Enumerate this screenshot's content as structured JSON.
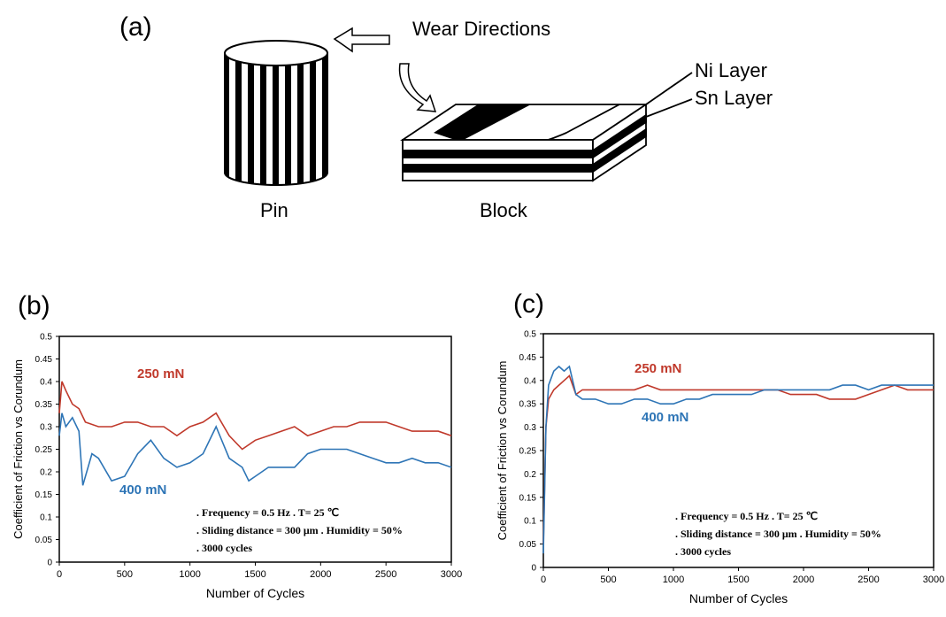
{
  "panel_a": {
    "label": "(a)",
    "wear_directions": "Wear Directions",
    "ni_layer": "Ni Layer",
    "sn_layer": "Sn Layer",
    "pin": "Pin",
    "block": "Block"
  },
  "chart_data": [
    {
      "type": "line",
      "panel": "(b)",
      "xlabel": "Number of Cycles",
      "ylabel": "Coefficient of Friction vs Corundum",
      "xlim": [
        0,
        3000
      ],
      "ylim": [
        0,
        0.5
      ],
      "xticks": [
        "0",
        "500",
        "1000",
        "1500",
        "2000",
        "2500",
        "3000"
      ],
      "yticks": [
        "0",
        "0.05",
        "0.1",
        "0.15",
        "0.2",
        "0.25",
        "0.3",
        "0.35",
        "0.4",
        "0.45",
        "0.5"
      ],
      "series": [
        {
          "name": "250 mN",
          "color": "#c0392b",
          "x": [
            0,
            20,
            50,
            100,
            150,
            200,
            300,
            400,
            500,
            600,
            700,
            800,
            900,
            1000,
            1100,
            1200,
            1300,
            1400,
            1500,
            1600,
            1700,
            1800,
            1900,
            2000,
            2100,
            2200,
            2300,
            2400,
            2500,
            2600,
            2700,
            2800,
            2900,
            3000
          ],
          "y": [
            0.33,
            0.4,
            0.38,
            0.35,
            0.34,
            0.31,
            0.3,
            0.3,
            0.31,
            0.31,
            0.3,
            0.3,
            0.28,
            0.3,
            0.31,
            0.33,
            0.28,
            0.25,
            0.27,
            0.28,
            0.29,
            0.3,
            0.28,
            0.29,
            0.3,
            0.3,
            0.31,
            0.31,
            0.31,
            0.3,
            0.29,
            0.29,
            0.29,
            0.28
          ]
        },
        {
          "name": "400 mN",
          "color": "#2e75b6",
          "x": [
            0,
            20,
            50,
            100,
            150,
            180,
            250,
            300,
            400,
            500,
            600,
            700,
            800,
            900,
            1000,
            1100,
            1200,
            1300,
            1400,
            1450,
            1500,
            1600,
            1700,
            1800,
            1900,
            2000,
            2100,
            2200,
            2300,
            2400,
            2500,
            2600,
            2700,
            2800,
            2900,
            3000
          ],
          "y": [
            0.28,
            0.33,
            0.3,
            0.32,
            0.29,
            0.17,
            0.24,
            0.23,
            0.18,
            0.19,
            0.24,
            0.27,
            0.23,
            0.21,
            0.22,
            0.24,
            0.3,
            0.23,
            0.21,
            0.18,
            0.19,
            0.21,
            0.21,
            0.21,
            0.24,
            0.25,
            0.25,
            0.25,
            0.24,
            0.23,
            0.22,
            0.22,
            0.23,
            0.22,
            0.22,
            0.21
          ]
        }
      ],
      "annotations": {
        "line1": ". Frequency = 0.5 Hz  . T= 25 ℃",
        "line2": ". Sliding distance = 300 μm  . Humidity = 50%",
        "line3": ". 3000 cycles"
      }
    },
    {
      "type": "line",
      "panel": "(c)",
      "xlabel": "Number of Cycles",
      "ylabel": "Coefficient of Friction vs Corundum",
      "xlim": [
        0,
        3000
      ],
      "ylim": [
        0,
        0.5
      ],
      "xticks": [
        "0",
        "500",
        "1000",
        "1500",
        "2000",
        "2500",
        "3000"
      ],
      "yticks": [
        "0",
        "0.05",
        "0.1",
        "0.15",
        "0.2",
        "0.25",
        "0.3",
        "0.35",
        "0.4",
        "0.45",
        "0.5"
      ],
      "series": [
        {
          "name": "250 mN",
          "color": "#c0392b",
          "x": [
            0,
            20,
            40,
            80,
            120,
            160,
            200,
            250,
            300,
            400,
            500,
            600,
            700,
            800,
            900,
            1000,
            1100,
            1200,
            1300,
            1400,
            1500,
            1600,
            1700,
            1800,
            1900,
            2000,
            2100,
            2200,
            2300,
            2400,
            2500,
            2600,
            2700,
            2800,
            2900,
            3000
          ],
          "y": [
            0.05,
            0.3,
            0.36,
            0.38,
            0.39,
            0.4,
            0.41,
            0.37,
            0.38,
            0.38,
            0.38,
            0.38,
            0.38,
            0.39,
            0.38,
            0.38,
            0.38,
            0.38,
            0.38,
            0.38,
            0.38,
            0.38,
            0.38,
            0.38,
            0.37,
            0.37,
            0.37,
            0.36,
            0.36,
            0.36,
            0.37,
            0.38,
            0.39,
            0.38,
            0.38,
            0.38
          ]
        },
        {
          "name": "400 mN",
          "color": "#2e75b6",
          "x": [
            0,
            20,
            40,
            80,
            120,
            160,
            200,
            250,
            300,
            400,
            500,
            600,
            700,
            800,
            900,
            1000,
            1100,
            1200,
            1300,
            1400,
            1500,
            1600,
            1700,
            1800,
            1900,
            2000,
            2100,
            2200,
            2300,
            2400,
            2500,
            2600,
            2700,
            2800,
            2900,
            3000
          ],
          "y": [
            0.03,
            0.3,
            0.39,
            0.42,
            0.43,
            0.42,
            0.43,
            0.37,
            0.36,
            0.36,
            0.35,
            0.35,
            0.36,
            0.36,
            0.35,
            0.35,
            0.36,
            0.36,
            0.37,
            0.37,
            0.37,
            0.37,
            0.38,
            0.38,
            0.38,
            0.38,
            0.38,
            0.38,
            0.39,
            0.39,
            0.38,
            0.39,
            0.39,
            0.39,
            0.39,
            0.39
          ]
        }
      ],
      "annotations": {
        "line1": ". Frequency = 0.5 Hz  . T= 25 ℃",
        "line2": ". Sliding distance = 300 μm  . Humidity = 50%",
        "line3": ". 3000 cycles"
      }
    }
  ]
}
